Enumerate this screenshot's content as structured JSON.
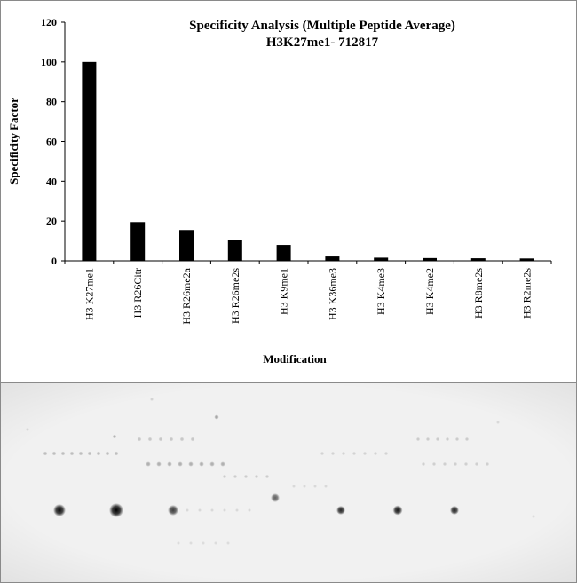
{
  "chart_data": {
    "type": "bar",
    "title": "Specificity Analysis (Multiple Peptide Average)",
    "subtitle": "H3K27me1- 712817",
    "xlabel": "Modification",
    "ylabel": "Specificity Factor",
    "ylim": [
      0,
      120
    ],
    "yticks": [
      "0",
      "20",
      "40",
      "60",
      "80",
      "100",
      "120"
    ],
    "categories": [
      "H3 K27me1",
      "H3 R26Citr",
      "H3 R26me2a",
      "H3 R26me2s",
      "H3 K9me1",
      "H3 K36me3",
      "H3 K4me3",
      "H3 K4me2",
      "H3 R8me2s",
      "H3 R2me2s"
    ],
    "values": [
      100,
      19.5,
      15.5,
      10.5,
      8,
      2.2,
      1.6,
      1.4,
      1.3,
      1.2
    ],
    "bar_color": "#000000",
    "grid": false,
    "legend": "none"
  },
  "blot": {
    "background": "#f1f1f1",
    "spot_color": "#1a1a1a"
  }
}
